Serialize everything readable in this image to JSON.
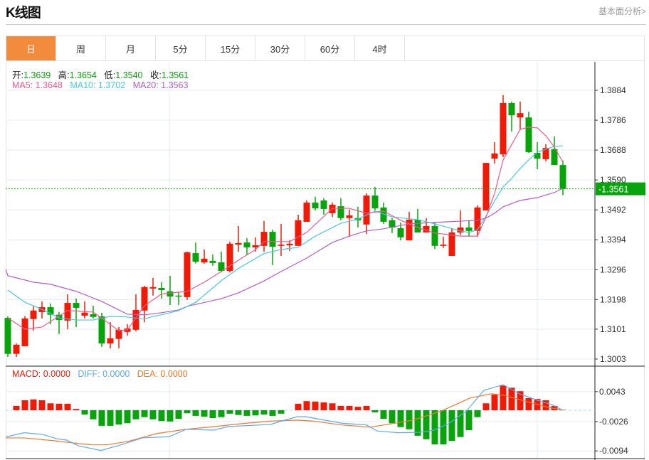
{
  "header": {
    "title": "K线图",
    "link": "基本面分析>"
  },
  "tabs": [
    {
      "label": "日",
      "active": true
    },
    {
      "label": "周"
    },
    {
      "label": "月"
    },
    {
      "label": "5分"
    },
    {
      "label": "15分"
    },
    {
      "label": "30分"
    },
    {
      "label": "60分"
    },
    {
      "label": "4时"
    }
  ],
  "ohlc_info": {
    "open_label": "开:",
    "open": "1.3639",
    "high_label": "高:",
    "high": "1.3654",
    "low_label": "低:",
    "low": "1.3540",
    "close_label": "收:",
    "close": "1.3561"
  },
  "ma_info": {
    "ma5": "MA5: 1.3648",
    "ma10": "MA10: 1.3702",
    "ma20": "MA20: 1.3563"
  },
  "macd_info": {
    "macd": "MACD: 0.0000",
    "diff": "DIFF: 0.0000",
    "dea": "DEA: 0.0000"
  },
  "colors": {
    "up": "#f01a07",
    "down": "#07a50b",
    "ma5": "#ef5a8a",
    "ma10": "#45c8e0",
    "ma20": "#b25ccc",
    "diff": "#5aaaf0",
    "dea": "#f5782a",
    "tab_active": "#f28c3c"
  },
  "chart_data": [
    {
      "type": "candlestick",
      "y_ticks": [
        "1.3884",
        "1.3786",
        "1.3688",
        "1.3590",
        "1.3492",
        "1.3394",
        "1.3296",
        "1.3198",
        "1.3101",
        "1.3003"
      ],
      "ylim": [
        1.3003,
        1.3884
      ],
      "last_price": "1.3561",
      "candles": [
        [
          1.3138,
          1.3143,
          1.301,
          1.302
        ],
        [
          1.302,
          1.3054,
          1.301,
          1.305
        ],
        [
          1.3045,
          1.3143,
          1.3045,
          1.3136
        ],
        [
          1.3134,
          1.3176,
          1.3096,
          1.3162
        ],
        [
          1.3157,
          1.3192,
          1.3136,
          1.3173
        ],
        [
          1.3173,
          1.3185,
          1.3117,
          1.3148
        ],
        [
          1.3148,
          1.3157,
          1.3085,
          1.3131
        ],
        [
          1.3129,
          1.3215,
          1.3101,
          1.3187
        ],
        [
          1.3187,
          1.3201,
          1.3108,
          1.3171
        ],
        [
          1.3145,
          1.3192,
          1.3136,
          1.3155
        ],
        [
          1.315,
          1.3178,
          1.3136,
          1.3141
        ],
        [
          1.3143,
          1.3155,
          1.3043,
          1.3054
        ],
        [
          1.3054,
          1.3124,
          1.3038,
          1.3071
        ],
        [
          1.3069,
          1.3108,
          1.3038,
          1.3099
        ],
        [
          1.3092,
          1.3117,
          1.308,
          1.3103
        ],
        [
          1.3099,
          1.3215,
          1.3094,
          1.3164
        ],
        [
          1.3162,
          1.3243,
          1.3124,
          1.3239
        ],
        [
          1.3234,
          1.3269,
          1.3211,
          1.3239
        ],
        [
          1.3236,
          1.3255,
          1.3201,
          1.3229
        ],
        [
          1.3225,
          1.3276,
          1.318,
          1.3208
        ],
        [
          1.3211,
          1.3222,
          1.318,
          1.3208
        ],
        [
          1.3206,
          1.3355,
          1.3197,
          1.3353
        ],
        [
          1.335,
          1.3385,
          1.3316,
          1.3322
        ],
        [
          1.332,
          1.3362,
          1.3316,
          1.3332
        ],
        [
          1.3325,
          1.3346,
          1.3309,
          1.3318
        ],
        [
          1.332,
          1.3355,
          1.3287,
          1.3292
        ],
        [
          1.3292,
          1.3388,
          1.3287,
          1.3381
        ],
        [
          1.3378,
          1.3439,
          1.3355,
          1.3383
        ],
        [
          1.3385,
          1.3399,
          1.3343,
          1.3369
        ],
        [
          1.3369,
          1.3402,
          1.3355,
          1.3376
        ],
        [
          1.3374,
          1.3455,
          1.3355,
          1.342
        ],
        [
          1.342,
          1.3427,
          1.3311,
          1.3371
        ],
        [
          1.3374,
          1.3446,
          1.3341,
          1.3378
        ],
        [
          1.3376,
          1.3392,
          1.3357,
          1.3381
        ],
        [
          1.3374,
          1.3476,
          1.3374,
          1.3458
        ],
        [
          1.3453,
          1.3523,
          1.3453,
          1.3516
        ],
        [
          1.3516,
          1.3535,
          1.349,
          1.3497
        ],
        [
          1.3523,
          1.353,
          1.3476,
          1.3495
        ],
        [
          1.3481,
          1.3516,
          1.3469,
          1.3509
        ],
        [
          1.3504,
          1.353,
          1.3458,
          1.3465
        ],
        [
          1.3465,
          1.3493,
          1.3404,
          1.3474
        ],
        [
          1.3465,
          1.3502,
          1.3434,
          1.3458
        ],
        [
          1.3444,
          1.3546,
          1.3413,
          1.3539
        ],
        [
          1.3539,
          1.3567,
          1.349,
          1.3497
        ],
        [
          1.35,
          1.3516,
          1.3446,
          1.3453
        ],
        [
          1.3458,
          1.3465,
          1.3416,
          1.3434
        ],
        [
          1.3432,
          1.3451,
          1.3392,
          1.3402
        ],
        [
          1.3392,
          1.3486,
          1.3392,
          1.346
        ],
        [
          1.346,
          1.3495,
          1.3418,
          1.3418
        ],
        [
          1.3418,
          1.3465,
          1.3418,
          1.3439
        ],
        [
          1.3439,
          1.3451,
          1.3364,
          1.3374
        ],
        [
          1.3374,
          1.3404,
          1.3367,
          1.3378
        ],
        [
          1.3341,
          1.3432,
          1.3341,
          1.3418
        ],
        [
          1.3418,
          1.349,
          1.3409,
          1.3434
        ],
        [
          1.3434,
          1.3458,
          1.3404,
          1.3423
        ],
        [
          1.3423,
          1.3507,
          1.3404,
          1.35
        ],
        [
          1.349,
          1.3646,
          1.349,
          1.3646
        ],
        [
          1.366,
          1.3714,
          1.3644,
          1.3677
        ],
        [
          1.3674,
          1.3868,
          1.3665,
          1.3842
        ],
        [
          1.3842,
          1.3847,
          1.3749,
          1.3802
        ],
        [
          1.3795,
          1.3847,
          1.3754,
          1.3809
        ],
        [
          1.3795,
          1.3814,
          1.3679,
          1.3681
        ],
        [
          1.3679,
          1.3714,
          1.3625,
          1.366
        ],
        [
          1.3658,
          1.3707,
          1.3651,
          1.3695
        ],
        [
          1.3691,
          1.3733,
          1.3639,
          1.3639
        ],
        [
          1.3639,
          1.3654,
          1.354,
          1.3561
        ]
      ],
      "ma5": [
        [
          1,
          1.3138
        ],
        [
          3,
          1.3101
        ],
        [
          5,
          1.3108
        ],
        [
          8,
          1.3162
        ],
        [
          11,
          1.3157
        ],
        [
          14,
          1.3096
        ],
        [
          15,
          1.3099
        ],
        [
          17,
          1.3178
        ],
        [
          19,
          1.3216
        ],
        [
          22,
          1.3225
        ],
        [
          24,
          1.3255
        ],
        [
          26,
          1.329
        ],
        [
          28,
          1.3327
        ],
        [
          30,
          1.3362
        ],
        [
          31,
          1.3388
        ],
        [
          34,
          1.3388
        ],
        [
          36,
          1.3418
        ],
        [
          39,
          1.3497
        ],
        [
          41,
          1.3497
        ],
        [
          43,
          1.3481
        ],
        [
          45,
          1.3488
        ],
        [
          47,
          1.3458
        ],
        [
          49,
          1.3434
        ],
        [
          51,
          1.3416
        ],
        [
          54,
          1.3406
        ],
        [
          56,
          1.3406
        ],
        [
          57,
          1.3469
        ],
        [
          58,
          1.3546
        ],
        [
          59,
          1.3656
        ],
        [
          61,
          1.3756
        ],
        [
          62,
          1.3763
        ],
        [
          63,
          1.3761
        ],
        [
          64,
          1.3735
        ],
        [
          65,
          1.3698
        ],
        [
          66,
          1.3648
        ]
      ],
      "ma10": [
        [
          1,
          1.3229
        ],
        [
          3,
          1.3189
        ],
        [
          5,
          1.3166
        ],
        [
          7,
          1.3138
        ],
        [
          9,
          1.3131
        ],
        [
          11,
          1.3131
        ],
        [
          13,
          1.3143
        ],
        [
          15,
          1.3141
        ],
        [
          17,
          1.3134
        ],
        [
          18,
          1.3143
        ],
        [
          19,
          1.3148
        ],
        [
          21,
          1.3162
        ],
        [
          23,
          1.3189
        ],
        [
          26,
          1.326
        ],
        [
          28,
          1.33
        ],
        [
          31,
          1.3349
        ],
        [
          33,
          1.3362
        ],
        [
          35,
          1.3369
        ],
        [
          37,
          1.3406
        ],
        [
          40,
          1.3448
        ],
        [
          42,
          1.3462
        ],
        [
          44,
          1.3488
        ],
        [
          46,
          1.3469
        ],
        [
          49,
          1.346
        ],
        [
          51,
          1.3446
        ],
        [
          54,
          1.3423
        ],
        [
          55,
          1.3418
        ],
        [
          56,
          1.3427
        ],
        [
          57,
          1.3472
        ],
        [
          58,
          1.3521
        ],
        [
          59,
          1.3567
        ],
        [
          60,
          1.3595
        ],
        [
          61,
          1.3628
        ],
        [
          62,
          1.3656
        ],
        [
          63,
          1.3681
        ],
        [
          64,
          1.3691
        ],
        [
          65,
          1.37
        ],
        [
          66,
          1.3702
        ]
      ],
      "ma20": [
        [
          0.75,
          1.3297
        ],
        [
          1,
          1.3276
        ],
        [
          4,
          1.3255
        ],
        [
          6,
          1.3248
        ],
        [
          9,
          1.3225
        ],
        [
          12,
          1.3192
        ],
        [
          14,
          1.3164
        ],
        [
          15,
          1.315
        ],
        [
          17,
          1.3148
        ],
        [
          19,
          1.3155
        ],
        [
          21,
          1.3164
        ],
        [
          22,
          1.3176
        ],
        [
          26,
          1.3201
        ],
        [
          28,
          1.322
        ],
        [
          31,
          1.3259
        ],
        [
          33,
          1.329
        ],
        [
          36,
          1.3334
        ],
        [
          39,
          1.3385
        ],
        [
          41,
          1.3406
        ],
        [
          43,
          1.3423
        ],
        [
          45,
          1.343
        ],
        [
          48,
          1.3446
        ],
        [
          51,
          1.3451
        ],
        [
          54,
          1.3455
        ],
        [
          56,
          1.3458
        ],
        [
          57,
          1.3465
        ],
        [
          58,
          1.3481
        ],
        [
          59,
          1.3502
        ],
        [
          61,
          1.3523
        ],
        [
          63,
          1.3532
        ],
        [
          65,
          1.3549
        ],
        [
          66,
          1.3563
        ]
      ]
    },
    {
      "type": "macd",
      "y_ticks": [
        "0.0043",
        "-0.0026",
        "-0.0094"
      ],
      "histogram": [
        0,
        0.001,
        0.0023,
        0.0025,
        0.0023,
        0.0016,
        0.0015,
        0.0015,
        0.0003,
        -0.001,
        -0.0021,
        -0.0036,
        -0.0036,
        -0.0033,
        -0.003,
        -0.0021,
        -0.0016,
        -0.0021,
        -0.0025,
        -0.0026,
        -0.002,
        -0.0007,
        -0.0013,
        -0.0015,
        -0.0018,
        -0.0016,
        -0.0008,
        -0.0011,
        -0.0013,
        -0.0012,
        -0.001,
        -0.0013,
        -0.0008,
        0,
        0.0015,
        0.0021,
        0.002,
        0.0018,
        0.0016,
        0.001,
        0.001,
        0.0008,
        0.001,
        -0.0005,
        -0.002,
        -0.003,
        -0.0039,
        -0.0044,
        -0.0059,
        -0.0067,
        -0.0079,
        -0.0079,
        -0.0071,
        -0.0062,
        -0.0046,
        -0.0016,
        0.0016,
        0.0036,
        0.0057,
        0.0052,
        0.0044,
        0.0028,
        0.0026,
        0.0023,
        0.001,
        0.0001
      ],
      "diff": [
        [
          0.75,
          -0.0062
        ],
        [
          2.9,
          -0.0052
        ],
        [
          5.1,
          -0.0056
        ],
        [
          6.75,
          -0.0066
        ],
        [
          7.9,
          -0.0069
        ],
        [
          9.25,
          -0.0082
        ],
        [
          11.9,
          -0.0093
        ],
        [
          14.25,
          -0.008
        ],
        [
          16.75,
          -0.0064
        ],
        [
          19.9,
          -0.0061
        ],
        [
          21.9,
          -0.0044
        ],
        [
          25.1,
          -0.0046
        ],
        [
          26.75,
          -0.0038
        ],
        [
          28.4,
          -0.0036
        ],
        [
          31.75,
          -0.0033
        ],
        [
          33.4,
          -0.0023
        ],
        [
          34.9,
          -0.0015
        ],
        [
          35.9,
          -0.0015
        ],
        [
          40.1,
          -0.003
        ],
        [
          43,
          -0.0034
        ],
        [
          44.25,
          -0.0048
        ],
        [
          46.75,
          -0.0052
        ],
        [
          49.25,
          -0.0051
        ],
        [
          50.9,
          -0.0046
        ],
        [
          52.6,
          -0.0031
        ],
        [
          54.7,
          -0.0002
        ],
        [
          56.75,
          0.0046
        ],
        [
          59,
          0.0059
        ],
        [
          60.9,
          0.0038
        ],
        [
          63,
          0.0023
        ],
        [
          64.7,
          0.0013
        ],
        [
          66,
          0.0
        ]
      ],
      "dea": [
        [
          0.75,
          -0.0064
        ],
        [
          2.9,
          -0.0064
        ],
        [
          6.75,
          -0.0071
        ],
        [
          9.25,
          -0.0077
        ],
        [
          10.9,
          -0.008
        ],
        [
          12.6,
          -0.008
        ],
        [
          15.1,
          -0.0072
        ],
        [
          18.4,
          -0.0054
        ],
        [
          21.9,
          -0.0044
        ],
        [
          25.1,
          -0.0038
        ],
        [
          28.4,
          -0.0031
        ],
        [
          31.75,
          -0.0025
        ],
        [
          34.9,
          -0.0023
        ],
        [
          36.75,
          -0.0025
        ],
        [
          40.1,
          -0.0034
        ],
        [
          43.4,
          -0.0039
        ],
        [
          45.1,
          -0.0034
        ],
        [
          48.4,
          -0.0023
        ],
        [
          51.75,
          -0.0002
        ],
        [
          55.1,
          0.0028
        ],
        [
          57.6,
          0.0038
        ],
        [
          59.25,
          0.0034
        ],
        [
          61.75,
          0.002
        ],
        [
          64.25,
          0.0007
        ],
        [
          66,
          0.0
        ]
      ]
    }
  ]
}
